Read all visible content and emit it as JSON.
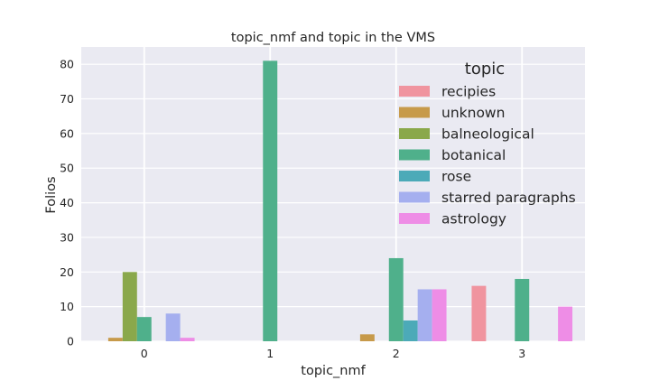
{
  "chart_data": {
    "type": "bar",
    "title": "topic_nmf and topic in the VMS",
    "xlabel": "topic_nmf",
    "ylabel": "Folios",
    "categories": [
      "0",
      "1",
      "2",
      "3"
    ],
    "yticks": [
      0,
      10,
      20,
      30,
      40,
      50,
      60,
      70,
      80
    ],
    "ylim": [
      0,
      85
    ],
    "grid": true,
    "legend": {
      "title": "topic",
      "placement": "top-right"
    },
    "series": [
      {
        "name": "recipies",
        "color": "#f0949f",
        "values": [
          0,
          0,
          0,
          16
        ]
      },
      {
        "name": "unknown",
        "color": "#c79a4a",
        "values": [
          1,
          0,
          2,
          0
        ]
      },
      {
        "name": "balneological",
        "color": "#8aa84b",
        "values": [
          20,
          0,
          0,
          0
        ]
      },
      {
        "name": "botanical",
        "color": "#4fb08b",
        "values": [
          7,
          81,
          24,
          18
        ]
      },
      {
        "name": "rose",
        "color": "#4caab8",
        "values": [
          0,
          0,
          6,
          0
        ]
      },
      {
        "name": "starred paragraphs",
        "color": "#a5afef",
        "values": [
          8,
          0,
          15,
          0
        ]
      },
      {
        "name": "astrology",
        "color": "#ee8de6",
        "values": [
          1,
          0,
          15,
          10
        ]
      }
    ]
  }
}
